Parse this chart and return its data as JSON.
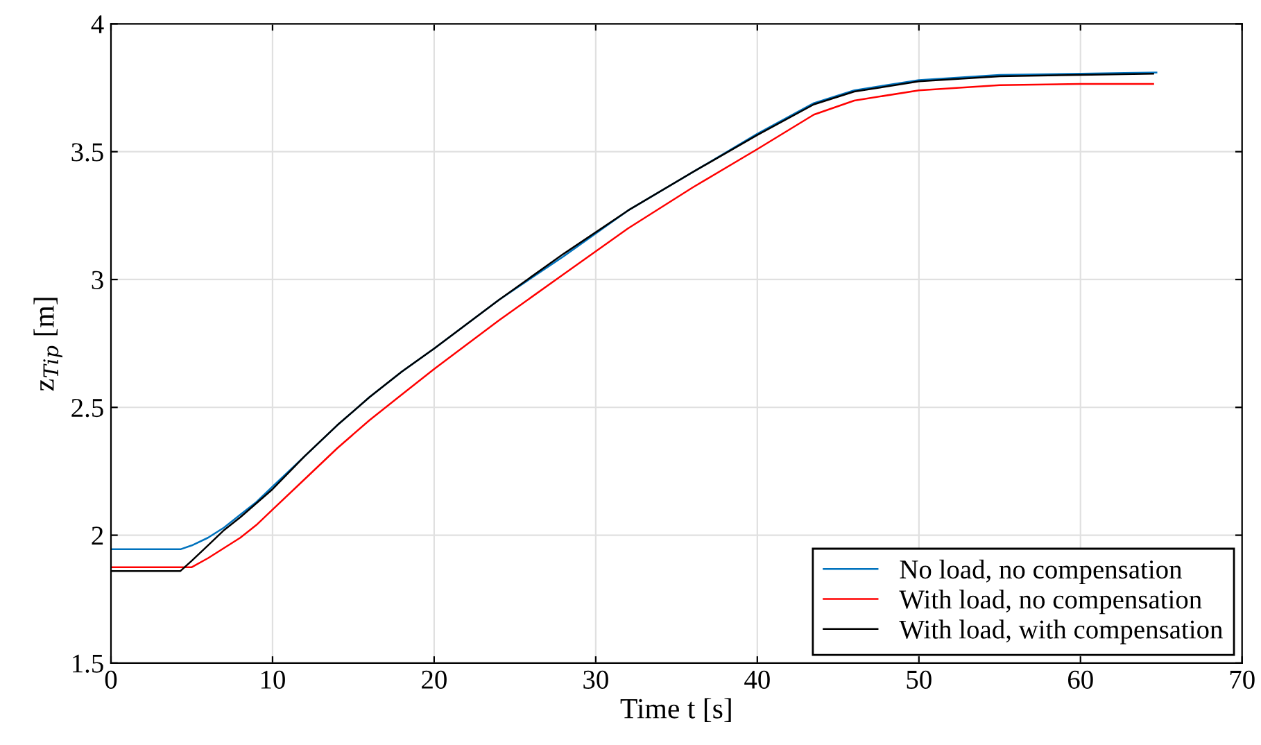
{
  "chart_data": {
    "type": "line",
    "xlabel": "Time t [s]",
    "ylabel": "z$_{Tip}$ [m]",
    "xlim": [
      0,
      70
    ],
    "ylim": [
      1.5,
      4
    ],
    "xticks": [
      0,
      10,
      20,
      30,
      40,
      50,
      60,
      70
    ],
    "yticks": [
      1.5,
      2,
      2.5,
      3,
      3.5,
      4
    ],
    "grid": true,
    "legend": "bottom right",
    "line_style": "solid",
    "series": [
      {
        "name": "No load, no compensation",
        "color": "#0072bd",
        "x": [
          0,
          4.3,
          5,
          6,
          7,
          8,
          9,
          10,
          12,
          14,
          16,
          18,
          20,
          24,
          28,
          32,
          36,
          40,
          43.5,
          46,
          50,
          55,
          60,
          64.7
        ],
        "values": [
          1.945,
          1.945,
          1.96,
          1.99,
          2.03,
          2.08,
          2.13,
          2.19,
          2.31,
          2.43,
          2.54,
          2.64,
          2.73,
          2.92,
          3.09,
          3.27,
          3.42,
          3.57,
          3.69,
          3.74,
          3.78,
          3.8,
          3.805,
          3.81
        ]
      },
      {
        "name": "With load, no compensation",
        "color": "#ff0000",
        "x": [
          0,
          5,
          6,
          7,
          8,
          9,
          10,
          12,
          14,
          16,
          18,
          20,
          24,
          28,
          32,
          36,
          40,
          43.5,
          46,
          50,
          55,
          60,
          64.5
        ],
        "values": [
          1.875,
          1.875,
          1.91,
          1.95,
          1.99,
          2.04,
          2.1,
          2.22,
          2.34,
          2.45,
          2.55,
          2.65,
          2.84,
          3.02,
          3.2,
          3.36,
          3.51,
          3.645,
          3.7,
          3.74,
          3.76,
          3.765,
          3.765
        ]
      },
      {
        "name": "With load, with compensation",
        "color": "#000000",
        "x": [
          0,
          4.3,
          5,
          6,
          7,
          8,
          10,
          12,
          14,
          16,
          18,
          20,
          24,
          28,
          32,
          36,
          40,
          43.5,
          46,
          50,
          55,
          60,
          64.5
        ],
        "values": [
          1.86,
          1.86,
          1.9,
          1.96,
          2.02,
          2.07,
          2.18,
          2.31,
          2.43,
          2.54,
          2.64,
          2.73,
          2.92,
          3.1,
          3.27,
          3.42,
          3.565,
          3.685,
          3.735,
          3.775,
          3.795,
          3.8,
          3.805
        ]
      }
    ]
  }
}
